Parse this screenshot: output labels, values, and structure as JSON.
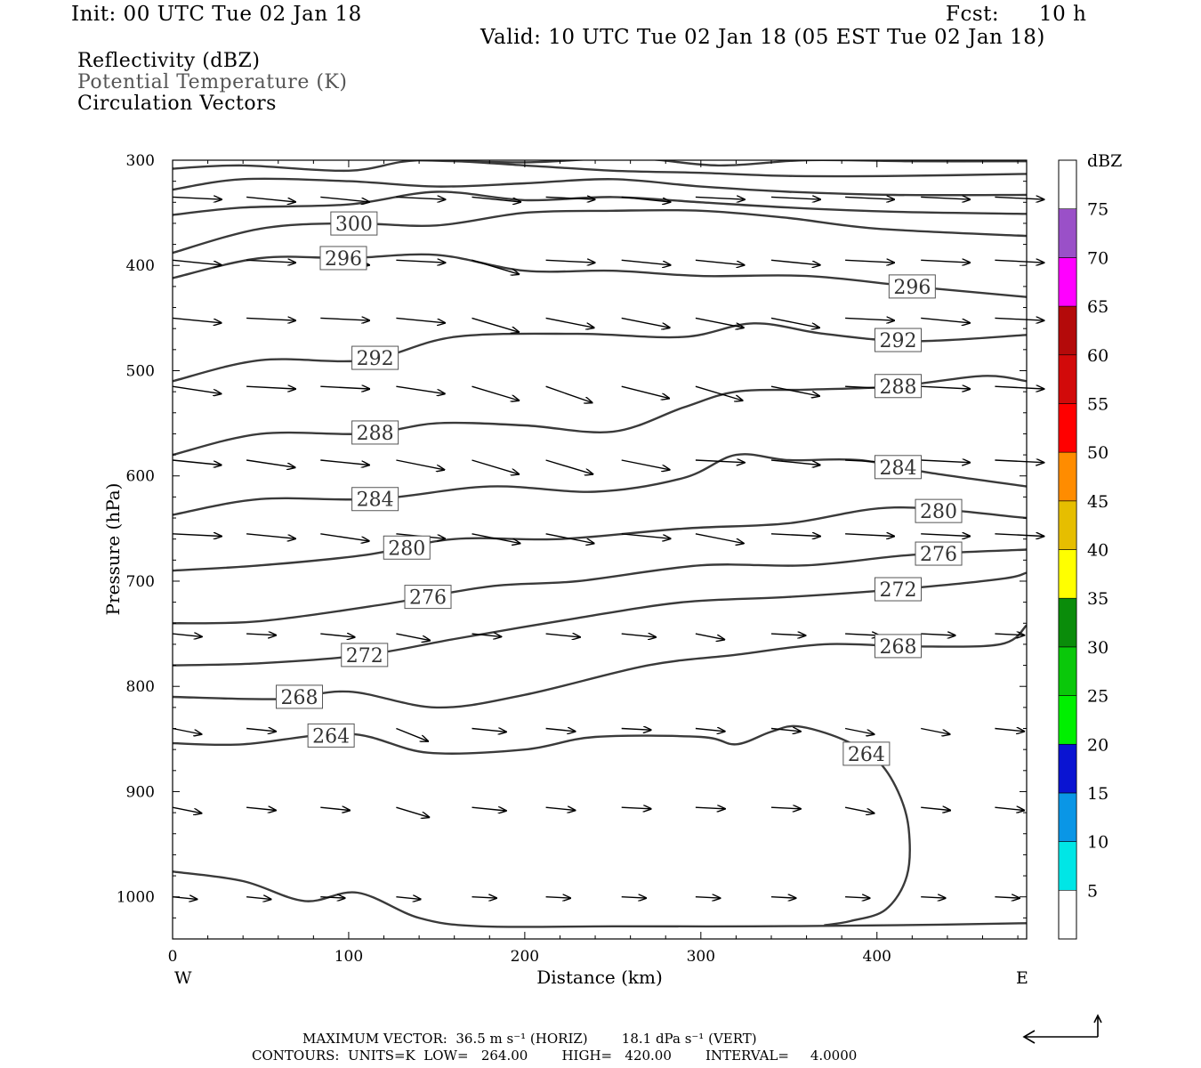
{
  "header": {
    "init": "Init: 00 UTC Tue 02 Jan 18",
    "fcst_label": "Fcst:",
    "fcst_value": "10 h",
    "valid": "Valid: 10 UTC Tue 02 Jan 18 (05 EST Tue 02 Jan 18)"
  },
  "legend": {
    "line1": "Reflectivity (dBZ)",
    "line2": "Potential Temperature (K)",
    "line3": "Circulation Vectors"
  },
  "colors": {
    "contour": "#3a3a3a",
    "potential_temperature_text": "#555555",
    "colorbar": [
      {
        "range": [
          5,
          10
        ],
        "color": "#00e6e6"
      },
      {
        "range": [
          10,
          15
        ],
        "color": "#0a96e6"
      },
      {
        "range": [
          15,
          20
        ],
        "color": "#0a14d2"
      },
      {
        "range": [
          20,
          25
        ],
        "color": "#00f000"
      },
      {
        "range": [
          25,
          30
        ],
        "color": "#0ac80a"
      },
      {
        "range": [
          30,
          35
        ],
        "color": "#0a8c0a"
      },
      {
        "range": [
          35,
          40
        ],
        "color": "#ffff00"
      },
      {
        "range": [
          40,
          45
        ],
        "color": "#e6be00"
      },
      {
        "range": [
          45,
          50
        ],
        "color": "#ff8c00"
      },
      {
        "range": [
          50,
          55
        ],
        "color": "#ff0000"
      },
      {
        "range": [
          55,
          60
        ],
        "color": "#d20a0a"
      },
      {
        "range": [
          60,
          65
        ],
        "color": "#b40a0a"
      },
      {
        "range": [
          65,
          70
        ],
        "color": "#ff00ff"
      },
      {
        "range": [
          70,
          75
        ],
        "color": "#9a50c8"
      }
    ]
  },
  "chart_data": {
    "type": "line",
    "title": "Potential Temperature (K)",
    "xlabel": "Distance (km)",
    "ylabel": "Pressure (hPa)",
    "xlim": [
      0,
      485
    ],
    "ylim": [
      1040,
      300
    ],
    "x_ticks": [
      0,
      100,
      200,
      300,
      400
    ],
    "y_ticks": [
      300,
      400,
      500,
      600,
      700,
      800,
      900,
      1000
    ],
    "x_end_labels": {
      "left": "W",
      "right": "E"
    },
    "colorbar": {
      "label": "dBZ",
      "ticks": [
        5,
        10,
        15,
        20,
        25,
        30,
        35,
        40,
        45,
        50,
        55,
        60,
        65,
        70,
        75
      ]
    },
    "contours": [
      {
        "level": 264,
        "label": "264",
        "label_x": [
          90,
          394
        ],
        "x": [
          0,
          40,
          100,
          145,
          200,
          240,
          300,
          320,
          340,
          355,
          380,
          400,
          412,
          418,
          417,
          405,
          385,
          370
        ],
        "y": [
          854,
          855,
          845,
          863,
          860,
          848,
          848,
          855,
          843,
          838,
          850,
          870,
          900,
          935,
          980,
          1012,
          1023,
          1027
        ]
      },
      {
        "level": 264,
        "label": "",
        "label_x": [],
        "x": [
          0,
          40,
          75,
          105,
          140,
          175,
          250,
          330,
          410,
          485
        ],
        "y": [
          976,
          985,
          1004,
          996,
          1020,
          1028,
          1028,
          1028,
          1027,
          1025
        ]
      },
      {
        "level": 268,
        "label": "268",
        "label_x": [
          72,
          412
        ],
        "x": [
          0,
          60,
          100,
          150,
          200,
          270,
          320,
          370,
          420,
          470,
          485
        ],
        "y": [
          810,
          812,
          805,
          820,
          808,
          780,
          770,
          760,
          762,
          760,
          742
        ]
      },
      {
        "level": 272,
        "label": "272",
        "label_x": [
          109,
          412
        ],
        "x": [
          0,
          50,
          110,
          160,
          230,
          290,
          350,
          410,
          470,
          485
        ],
        "y": [
          780,
          778,
          770,
          755,
          735,
          720,
          715,
          708,
          698,
          692
        ]
      },
      {
        "level": 276,
        "label": "276",
        "label_x": [
          145,
          435
        ],
        "x": [
          0,
          50,
          120,
          180,
          230,
          300,
          360,
          420,
          485
        ],
        "y": [
          740,
          738,
          722,
          705,
          700,
          685,
          685,
          675,
          670
        ]
      },
      {
        "level": 280,
        "label": "280",
        "label_x": [
          133,
          435
        ],
        "x": [
          0,
          50,
          110,
          160,
          220,
          290,
          350,
          410,
          485
        ],
        "y": [
          690,
          685,
          675,
          660,
          660,
          650,
          645,
          630,
          640
        ]
      },
      {
        "level": 284,
        "label": "284",
        "label_x": [
          115,
          412
        ],
        "x": [
          0,
          50,
          115,
          180,
          240,
          290,
          320,
          350,
          390,
          430,
          485
        ],
        "y": [
          637,
          622,
          622,
          610,
          615,
          602,
          580,
          585,
          585,
          597,
          610
        ]
      },
      {
        "level": 288,
        "label": "288",
        "label_x": [
          115,
          412
        ],
        "x": [
          0,
          50,
          110,
          150,
          200,
          250,
          290,
          320,
          360,
          410,
          460,
          485
        ],
        "y": [
          580,
          560,
          560,
          550,
          552,
          558,
          535,
          520,
          518,
          515,
          505,
          510
        ]
      },
      {
        "level": 292,
        "label": "292",
        "label_x": [
          115,
          412
        ],
        "x": [
          0,
          50,
          110,
          160,
          230,
          290,
          330,
          370,
          420,
          485
        ],
        "y": [
          510,
          490,
          490,
          468,
          465,
          468,
          455,
          465,
          472,
          466
        ]
      },
      {
        "level": 296,
        "label": "296",
        "label_x": [
          97,
          420
        ],
        "x": [
          0,
          50,
          100,
          150,
          200,
          250,
          300,
          360,
          420,
          485
        ],
        "y": [
          412,
          393,
          393,
          390,
          405,
          405,
          410,
          410,
          420,
          430
        ]
      },
      {
        "level": 300,
        "label": "300",
        "label_x": [
          103
        ],
        "x": [
          0,
          50,
          100,
          150,
          200,
          250,
          300,
          350,
          400,
          485
        ],
        "y": [
          388,
          365,
          360,
          362,
          350,
          348,
          348,
          355,
          365,
          372
        ]
      },
      {
        "level": 304,
        "label": "",
        "label_x": [],
        "x": [
          0,
          40,
          100,
          150,
          200,
          250,
          300,
          350,
          410,
          485
        ],
        "y": [
          352,
          345,
          342,
          330,
          338,
          335,
          340,
          345,
          349,
          351
        ]
      },
      {
        "level": 308,
        "label": "",
        "label_x": [],
        "x": [
          0,
          40,
          100,
          150,
          200,
          250,
          300,
          350,
          410,
          485
        ],
        "y": [
          328,
          318,
          320,
          325,
          322,
          318,
          325,
          330,
          333,
          333
        ]
      },
      {
        "level": 312,
        "label": "",
        "label_x": [],
        "x": [
          0,
          40,
          100,
          140,
          200,
          250,
          300,
          350,
          410,
          485
        ],
        "y": [
          308,
          305,
          310,
          300,
          305,
          310,
          312,
          315,
          315,
          313
        ]
      },
      {
        "level": 316,
        "label": "",
        "label_x": [],
        "x": [
          140,
          200,
          260,
          310,
          360,
          420,
          485
        ],
        "y": [
          300,
          302,
          298,
          305,
          300,
          301,
          301
        ]
      }
    ],
    "vectors": {
      "x": [
        0,
        42,
        84,
        127,
        170,
        212,
        255,
        297,
        340,
        382,
        425,
        467
      ],
      "rows": [
        {
          "p": 335,
          "u": [
            1,
            1,
            1,
            1,
            1,
            1,
            1,
            1,
            1,
            1,
            1,
            1
          ],
          "w": [
            0.05,
            0.1,
            0.1,
            0.05,
            0.1,
            0.05,
            0.1,
            0.05,
            0.05,
            0.05,
            0.05,
            0.05
          ]
        },
        {
          "p": 395,
          "u": [
            1,
            1,
            1,
            1,
            1,
            1,
            1,
            1,
            1,
            1,
            1,
            1
          ],
          "w": [
            0.1,
            0.05,
            0.1,
            0.05,
            0.3,
            0.05,
            0.1,
            0.1,
            0.1,
            0.05,
            0.05,
            0.05
          ]
        },
        {
          "p": 450,
          "u": [
            1,
            1,
            1,
            1,
            1,
            1,
            1,
            1,
            1,
            1,
            1,
            1
          ],
          "w": [
            0.1,
            0.05,
            0.05,
            0.1,
            0.3,
            0.2,
            0.2,
            0.2,
            0.2,
            0.05,
            0.1,
            0.05
          ]
        },
        {
          "p": 515,
          "u": [
            1,
            1,
            1,
            1,
            1,
            1,
            1,
            1,
            1,
            1,
            1,
            1
          ],
          "w": [
            0.15,
            0.05,
            0.05,
            0.15,
            0.3,
            0.35,
            0.25,
            0.3,
            0.2,
            0.05,
            0.05,
            0.05
          ]
        },
        {
          "p": 585,
          "u": [
            1,
            1,
            1,
            1,
            1,
            1,
            1,
            1,
            1,
            1,
            1,
            1
          ],
          "w": [
            0.1,
            0.15,
            0.1,
            0.2,
            0.3,
            0.3,
            0.2,
            0.05,
            0.1,
            0.05,
            0.05,
            0.05
          ]
        },
        {
          "p": 655,
          "u": [
            1,
            1,
            1,
            1,
            1,
            1,
            1,
            1,
            1,
            1,
            1,
            1
          ],
          "w": [
            0.05,
            0.1,
            0.15,
            0.1,
            0.2,
            0.2,
            0.1,
            0.2,
            0.05,
            0.05,
            0.05,
            0.05
          ]
        },
        {
          "p": 750,
          "u": [
            0.6,
            0.6,
            0.7,
            0.7,
            0.6,
            0.7,
            0.7,
            0.6,
            0.7,
            0.7,
            0.7,
            0.6
          ],
          "w": [
            0.1,
            0.05,
            0.1,
            0.2,
            0.1,
            0.1,
            0.1,
            0.2,
            0.05,
            0.05,
            0.05,
            0.05
          ]
        },
        {
          "p": 840,
          "u": [
            0.6,
            0.6,
            0.6,
            0.7,
            0.7,
            0.6,
            0.6,
            0.6,
            0.6,
            0.6,
            0.6,
            0.6
          ],
          "w": [
            0.2,
            0.1,
            0.2,
            0.4,
            0.1,
            0.1,
            0.05,
            0.1,
            0.1,
            0.2,
            0.2,
            0.1
          ]
        },
        {
          "p": 915,
          "u": [
            0.6,
            0.6,
            0.6,
            0.7,
            0.7,
            0.6,
            0.6,
            0.6,
            0.6,
            0.6,
            0.6,
            0.6
          ],
          "w": [
            0.2,
            0.1,
            0.1,
            0.3,
            0.1,
            0.1,
            0.05,
            0.05,
            0.05,
            0.2,
            0.1,
            0.1
          ]
        },
        {
          "p": 1000,
          "u": [
            0.5,
            0.5,
            0.5,
            0.5,
            0.5,
            0.5,
            0.5,
            0.5,
            0.5,
            0.5,
            0.5,
            0.5
          ],
          "w": [
            0.1,
            0.1,
            0.05,
            0.1,
            0.05,
            0.05,
            0.05,
            0.05,
            0.05,
            0.05,
            0.05,
            0.05
          ]
        }
      ]
    }
  },
  "footer": {
    "line1": "MAXIMUM VECTOR:  36.5 m s⁻¹ (HORIZ)        18.1 dPa s⁻¹ (VERT)",
    "line2": "CONTOURS:  UNITS=K  LOW=   264.00        HIGH=   420.00        INTERVAL=     4.0000"
  }
}
